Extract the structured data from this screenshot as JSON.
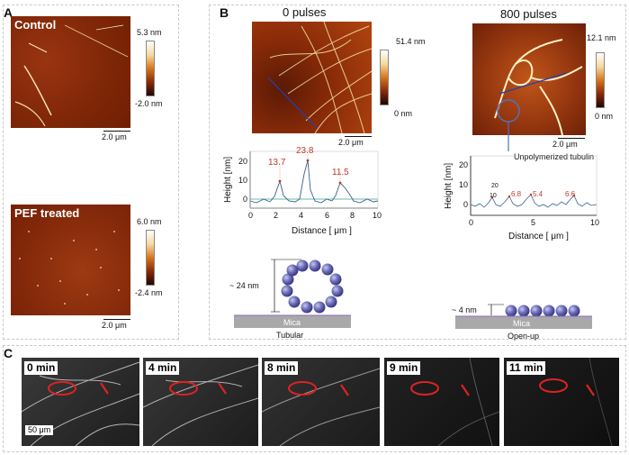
{
  "panelA": {
    "label": "A",
    "control": {
      "title": "Control",
      "cmax": "5.3 nm",
      "cmin": "-2.0 nm",
      "scale": "2.0 μm"
    },
    "pef": {
      "title": "PEF treated",
      "cmax": "6.0 nm",
      "cmin": "-2.4 nm",
      "scale": "2.0 μm"
    }
  },
  "panelB": {
    "label": "B",
    "left": {
      "title": "0 pulses",
      "cmax": "51.4 nm",
      "cmin": "0 nm",
      "scale": "2.0 μm",
      "ylabel": "Height [nm]",
      "xlabel": "Distance [ μm ]",
      "yticks": [
        "20",
        "10",
        "0"
      ],
      "xticks": [
        "0",
        "2",
        "4",
        "6",
        "8",
        "10"
      ],
      "peaks": [
        "13.7",
        "23.8",
        "11.5"
      ],
      "cartoon_height": "~ 24 nm",
      "substrate": "Mica",
      "caption": "Tubular"
    },
    "right": {
      "title": "800 pulses",
      "cmax": "12.1 nm",
      "cmin": "0 nm",
      "scale": "2.0 μm",
      "note": "Unpolymerized tubulin",
      "ylabel": "Height [nm]",
      "xlabel": "Distance [ μm ]",
      "yticks": [
        "20",
        "10",
        "0"
      ],
      "xticks": [
        "0",
        "5",
        "10"
      ],
      "inner_ticks": [
        "20",
        "10"
      ],
      "peaks": [
        "6.8",
        "5.4",
        "6.6"
      ],
      "cartoon_height": "~ 4 nm",
      "substrate": "Mica",
      "caption": "Open-up"
    }
  },
  "panelC": {
    "label": "C",
    "frames": [
      "0 min",
      "4 min",
      "8 min",
      "9 min",
      "11 min"
    ],
    "scale": "50 μm"
  }
}
